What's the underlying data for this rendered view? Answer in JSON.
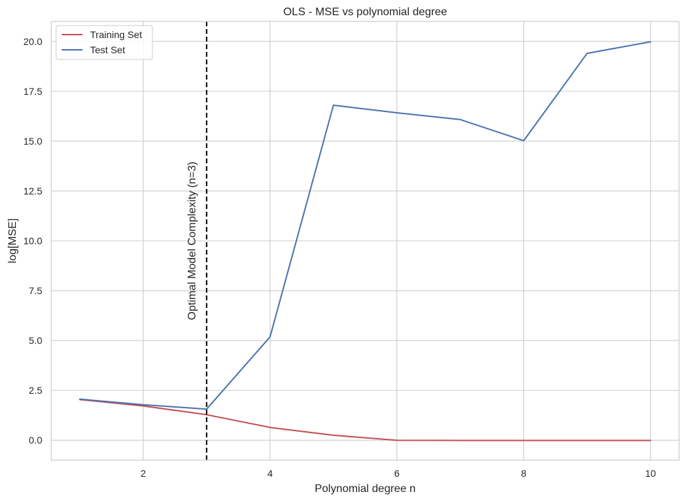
{
  "chart_data": {
    "type": "line",
    "title": "OLS - MSE vs polynomial degree",
    "xlabel": "Polynomial degree n",
    "ylabel": "log[MSE]",
    "xlim": [
      0.55,
      10.45
    ],
    "ylim": [
      -1.0,
      21.0
    ],
    "x_ticks": [
      2,
      4,
      6,
      8,
      10
    ],
    "x_tick_labels": [
      "2",
      "4",
      "6",
      "8",
      "10"
    ],
    "y_ticks": [
      0.0,
      2.5,
      5.0,
      7.5,
      10.0,
      12.5,
      15.0,
      17.5,
      20.0
    ],
    "y_tick_labels": [
      "0.0",
      "2.5",
      "5.0",
      "7.5",
      "10.0",
      "12.5",
      "15.0",
      "17.5",
      "20.0"
    ],
    "grid": true,
    "legend_position": "top-left",
    "x": [
      1,
      2,
      3,
      4,
      5,
      6,
      7,
      8,
      9,
      10
    ],
    "series": [
      {
        "name": "Training Set",
        "color": "#c44e52",
        "values": [
          2.04,
          1.72,
          1.28,
          0.64,
          0.25,
          0.0,
          -0.01,
          -0.01,
          -0.01,
          -0.01
        ]
      },
      {
        "name": "Test Set",
        "color": "#4c72b0",
        "values": [
          2.06,
          1.78,
          1.56,
          5.18,
          16.8,
          16.42,
          16.08,
          15.02,
          19.4,
          19.98
        ]
      }
    ],
    "vline": {
      "x": 3,
      "color": "#000000",
      "style": "dashed",
      "label": "Optimal Model Complexity (n=3)"
    }
  }
}
